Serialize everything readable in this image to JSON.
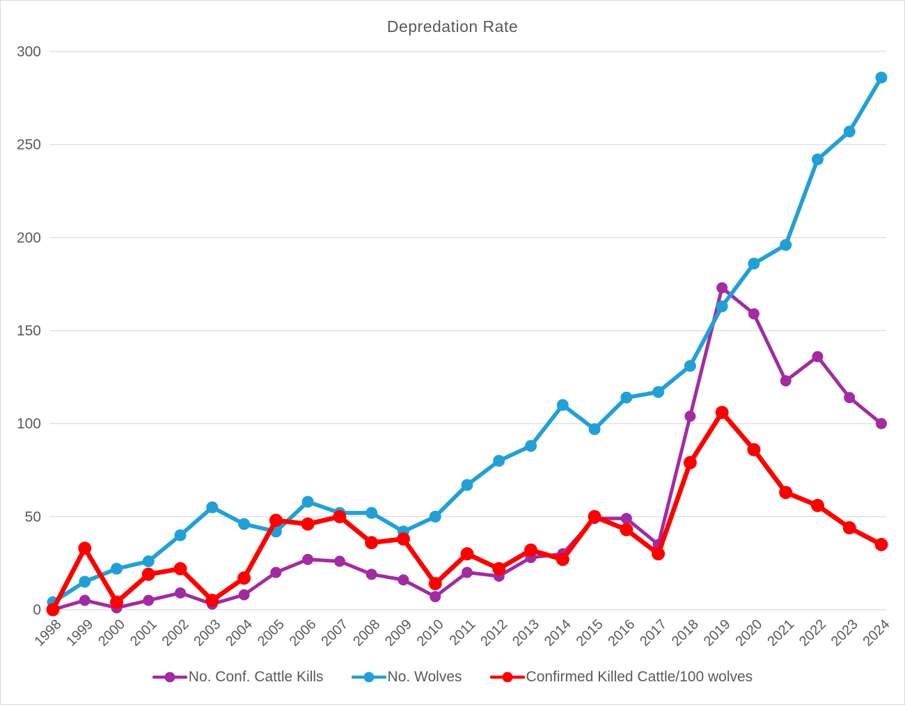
{
  "chart_data": {
    "type": "line",
    "title": "Depredation Rate",
    "x": [
      "1998",
      "1999",
      "2000",
      "2001",
      "2002",
      "2003",
      "2004",
      "2005",
      "2006",
      "2007",
      "2008",
      "2009",
      "2010",
      "2011",
      "2012",
      "2013",
      "2014",
      "2015",
      "2016",
      "2017",
      "2018",
      "2019",
      "2020",
      "2021",
      "2022",
      "2023",
      "2024"
    ],
    "series": [
      {
        "name": "No. Conf. Cattle Kills",
        "color": "#A22BA2",
        "values": [
          0,
          5,
          1,
          5,
          9,
          3,
          8,
          20,
          27,
          26,
          19,
          16,
          7,
          20,
          18,
          28,
          30,
          49,
          49,
          35,
          104,
          173,
          159,
          123,
          136,
          114,
          100
        ]
      },
      {
        "name": "No. Wolves",
        "color": "#22A0D6",
        "values": [
          4,
          15,
          22,
          26,
          40,
          55,
          46,
          42,
          58,
          52,
          52,
          42,
          50,
          67,
          80,
          88,
          110,
          97,
          114,
          117,
          131,
          163,
          186,
          196,
          242,
          257,
          286
        ]
      },
      {
        "name": "Confirmed Killed Cattle/100 wolves",
        "color": "#FF0000",
        "values": [
          0,
          33,
          4,
          19,
          22,
          5,
          17,
          48,
          46,
          50,
          36,
          38,
          14,
          30,
          22,
          32,
          27,
          50,
          43,
          30,
          79,
          106,
          86,
          63,
          56,
          44,
          35
        ]
      }
    ],
    "ylim": [
      0,
      300
    ],
    "ytick_step": 50,
    "ytick_labels": [
      "0",
      "50",
      "100",
      "150",
      "200",
      "250",
      "300"
    ],
    "xlabel": "",
    "ylabel": "",
    "grid": true,
    "legend_position": "bottom",
    "grid_color": "#D9D9D9",
    "axis_text_color": "#595959",
    "background_color": "#FFFFFF"
  }
}
